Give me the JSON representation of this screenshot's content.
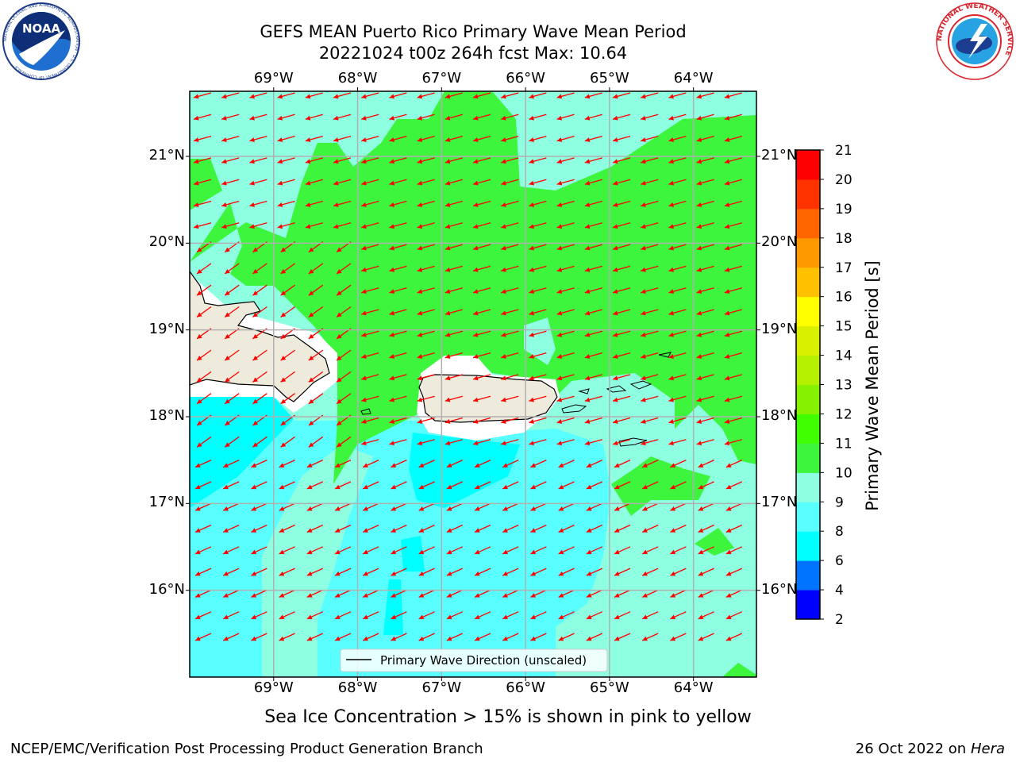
{
  "header": {
    "title_line1": "GEFS MEAN Puerto Rico Primary Wave Mean Period",
    "title_line2": "20221024 t00z 264h fcst   Max: 10.64"
  },
  "logos": {
    "left_text": "NOAA",
    "left_ring": "NATIONAL OCEANIC AND ATMOSPHERIC ADMINISTRATION · U.S. DEPARTMENT OF COMMERCE",
    "right_ring": "NATIONAL WEATHER SERVICE"
  },
  "map": {
    "lon_labels": [
      "69°W",
      "68°W",
      "67°W",
      "66°W",
      "65°W",
      "64°W"
    ],
    "lat_labels": [
      "21°N",
      "20°N",
      "19°N",
      "18°N",
      "17°N",
      "16°N"
    ],
    "lon_ticks": [
      -69,
      -68,
      -67,
      -66,
      -65,
      -64
    ],
    "lat_ticks": [
      21,
      20,
      19,
      18,
      17,
      16
    ],
    "lon_range": [
      -70.0,
      -63.25
    ],
    "lat_range": [
      15.0,
      21.75
    ],
    "legend_label": "Primary Wave Direction (unscaled)",
    "legend_position": "bottom-center",
    "arrow_color": "#ff0000",
    "land_color": "#efebdc"
  },
  "colorbar": {
    "label": "Primary Wave Mean Period [s]",
    "ticks": [
      "2",
      "4",
      "6",
      "8",
      "9",
      "10",
      "11",
      "12",
      "13",
      "14",
      "15",
      "16",
      "17",
      "18",
      "19",
      "20",
      "21"
    ],
    "colors": [
      "#0000ff",
      "#0073ff",
      "#00ffff",
      "#59ffff",
      "#8fffe2",
      "#3cf53c",
      "#40ff00",
      "#86f200",
      "#b5f000",
      "#d9f000",
      "#ffff00",
      "#ffc000",
      "#ff9900",
      "#ff6600",
      "#ff3300",
      "#ff0000"
    ]
  },
  "footer": {
    "note": "Sea Ice Concentration > 15% is shown in pink to yellow",
    "branch": "NCEP/EMC/Verification Post Processing Product Generation Branch",
    "date": "26 Oct 2022 on",
    "host": "Hera"
  }
}
